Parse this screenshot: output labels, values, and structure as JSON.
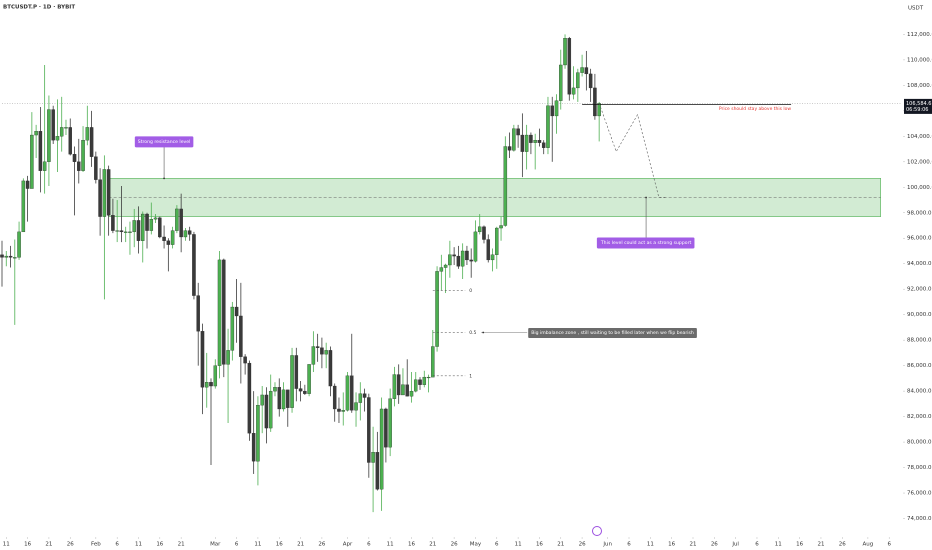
{
  "chart_data": {
    "type": "candlestick",
    "title": "BTCUSDT.P · 1D · BYBIT",
    "currency": "USDT",
    "bull_color": "#4caf50",
    "bear_color": "#3a3a3a",
    "grid": false,
    "xlim": [
      "Jan 10",
      "Aug 9"
    ],
    "ylim": [
      73100,
      114700
    ],
    "yticks": [
      {
        "value": 112000,
        "label": "112,000.0"
      },
      {
        "value": 110000,
        "label": "110,000.0"
      },
      {
        "value": 108000,
        "label": "108,000.0"
      },
      {
        "value": 106000,
        "label": "106,000.0"
      },
      {
        "value": 104000,
        "label": "104,000.0"
      },
      {
        "value": 102000,
        "label": "102,000.0"
      },
      {
        "value": 100000,
        "label": "100,000.0"
      },
      {
        "value": 98000,
        "label": "98,000.0"
      },
      {
        "value": 96000,
        "label": "96,000.0"
      },
      {
        "value": 94000,
        "label": "94,000.0"
      },
      {
        "value": 92000,
        "label": "92,000.0"
      },
      {
        "value": 90000,
        "label": "90,000.0"
      },
      {
        "value": 88000,
        "label": "88,000.0"
      },
      {
        "value": 86000,
        "label": "86,000.0"
      },
      {
        "value": 84000,
        "label": "84,000.0"
      },
      {
        "value": 82000,
        "label": "82,000.0"
      },
      {
        "value": 80000,
        "label": "80,000.0"
      },
      {
        "value": 78000,
        "label": "78,000.0"
      },
      {
        "value": 76000,
        "label": "76,000.0"
      },
      {
        "value": 74000,
        "label": "74,000.0"
      }
    ],
    "xticks": [
      {
        "value": "Jan 11",
        "label": "11"
      },
      {
        "value": "Jan 16",
        "label": "16"
      },
      {
        "value": "Jan 21",
        "label": "21"
      },
      {
        "value": "Jan 26",
        "label": "26"
      },
      {
        "value": "Feb 1",
        "label": "Feb"
      },
      {
        "value": "Feb 6",
        "label": "6"
      },
      {
        "value": "Feb 11",
        "label": "11"
      },
      {
        "value": "Feb 16",
        "label": "16"
      },
      {
        "value": "Feb 21",
        "label": "21"
      },
      {
        "value": "Mar 1",
        "label": "Mar"
      },
      {
        "value": "Mar 6",
        "label": "6"
      },
      {
        "value": "Mar 11",
        "label": "11"
      },
      {
        "value": "Mar 16",
        "label": "16"
      },
      {
        "value": "Mar 21",
        "label": "21"
      },
      {
        "value": "Mar 26",
        "label": "26"
      },
      {
        "value": "Apr 1",
        "label": "Apr"
      },
      {
        "value": "Apr 6",
        "label": "6"
      },
      {
        "value": "Apr 11",
        "label": "11"
      },
      {
        "value": "Apr 16",
        "label": "16"
      },
      {
        "value": "Apr 21",
        "label": "21"
      },
      {
        "value": "Apr 26",
        "label": "26"
      },
      {
        "value": "May 1",
        "label": "May"
      },
      {
        "value": "May 6",
        "label": "6"
      },
      {
        "value": "May 11",
        "label": "11"
      },
      {
        "value": "May 16",
        "label": "16"
      },
      {
        "value": "May 21",
        "label": "21"
      },
      {
        "value": "May 26",
        "label": "26"
      },
      {
        "value": "Jun 1",
        "label": "Jun"
      },
      {
        "value": "Jun 6",
        "label": "6"
      },
      {
        "value": "Jun 11",
        "label": "11"
      },
      {
        "value": "Jun 16",
        "label": "16"
      },
      {
        "value": "Jun 21",
        "label": "21"
      },
      {
        "value": "Jun 26",
        "label": "26"
      },
      {
        "value": "Jul 1",
        "label": "Jul"
      },
      {
        "value": "Jul 6",
        "label": "6"
      },
      {
        "value": "Jul 11",
        "label": "11"
      },
      {
        "value": "Jul 16",
        "label": "16"
      },
      {
        "value": "Jul 21",
        "label": "21"
      },
      {
        "value": "Jul 26",
        "label": "26"
      },
      {
        "value": "Aug 1",
        "label": "Aug"
      },
      {
        "value": "Aug 6",
        "label": "6"
      }
    ],
    "x": [
      "Jan 10",
      "Jan 11",
      "Jan 12",
      "Jan 13",
      "Jan 14",
      "Jan 15",
      "Jan 16",
      "Jan 17",
      "Jan 18",
      "Jan 19",
      "Jan 20",
      "Jan 21",
      "Jan 22",
      "Jan 23",
      "Jan 24",
      "Jan 25",
      "Jan 26",
      "Jan 27",
      "Jan 28",
      "Jan 29",
      "Jan 30",
      "Jan 31",
      "Feb 1",
      "Feb 2",
      "Feb 3",
      "Feb 4",
      "Feb 5",
      "Feb 6",
      "Feb 7",
      "Feb 8",
      "Feb 9",
      "Feb 10",
      "Feb 11",
      "Feb 12",
      "Feb 13",
      "Feb 14",
      "Feb 15",
      "Feb 16",
      "Feb 17",
      "Feb 18",
      "Feb 19",
      "Feb 20",
      "Feb 21",
      "Feb 22",
      "Feb 23",
      "Feb 24",
      "Feb 25",
      "Feb 26",
      "Feb 27",
      "Feb 28",
      "Mar 1",
      "Mar 2",
      "Mar 3",
      "Mar 4",
      "Mar 5",
      "Mar 6",
      "Mar 7",
      "Mar 8",
      "Mar 9",
      "Mar 10",
      "Mar 11",
      "Mar 12",
      "Mar 13",
      "Mar 14",
      "Mar 15",
      "Mar 16",
      "Mar 17",
      "Mar 18",
      "Mar 19",
      "Mar 20",
      "Mar 21",
      "Mar 22",
      "Mar 23",
      "Mar 24",
      "Mar 25",
      "Mar 26",
      "Mar 27",
      "Mar 28",
      "Mar 29",
      "Mar 30",
      "Mar 31",
      "Apr 1",
      "Apr 2",
      "Apr 3",
      "Apr 4",
      "Apr 5",
      "Apr 6",
      "Apr 7",
      "Apr 8",
      "Apr 9",
      "Apr 10",
      "Apr 11",
      "Apr 12",
      "Apr 13",
      "Apr 14",
      "Apr 15",
      "Apr 16",
      "Apr 17",
      "Apr 18",
      "Apr 19",
      "Apr 20",
      "Apr 21",
      "Apr 22",
      "Apr 23",
      "Apr 24",
      "Apr 25",
      "Apr 26",
      "Apr 27",
      "Apr 28",
      "Apr 29",
      "Apr 30",
      "May 1",
      "May 2",
      "May 3",
      "May 4",
      "May 5",
      "May 6",
      "May 7",
      "May 8",
      "May 9",
      "May 10",
      "May 11",
      "May 12",
      "May 13",
      "May 14",
      "May 15",
      "May 16",
      "May 17",
      "May 18",
      "May 19",
      "May 20",
      "May 21",
      "May 22",
      "May 23",
      "May 24",
      "May 25",
      "May 26",
      "May 27",
      "May 28",
      "May 29",
      "May 30"
    ],
    "open": [
      94700,
      94500,
      94600,
      94500,
      94500,
      96500,
      100500,
      99900,
      104100,
      104400,
      101300,
      102000,
      106100,
      103700,
      104000,
      104700,
      104700,
      102600,
      102000,
      101300,
      103700,
      104700,
      102400,
      100600,
      97700,
      101400,
      97800,
      96600,
      96600,
      96500,
      96500,
      96500,
      97400,
      95800,
      97900,
      96600,
      97500,
      97600,
      96100,
      95800,
      95500,
      96600,
      98300,
      96100,
      96600,
      96300,
      91500,
      88700,
      84300,
      84700,
      84400,
      86000,
      94300,
      86100,
      87200,
      90600,
      89900,
      86700,
      86200,
      80700,
      78500,
      82900,
      83700,
      81100,
      84000,
      84300,
      82600,
      84100,
      82700,
      86800,
      84200,
      84000,
      83800,
      86100,
      87500,
      87400,
      86900,
      87200,
      84400,
      82600,
      82400,
      82500,
      85200,
      82500,
      83100,
      83800,
      83500,
      78400,
      79200,
      76300,
      82600,
      79600,
      83400,
      85300,
      83700,
      84500,
      83600,
      84000,
      84900,
      84500,
      85100,
      85100,
      87500,
      93400,
      93700,
      93900,
      94700,
      94600,
      93800,
      95000,
      94300,
      94200,
      96500,
      96900,
      95900,
      94300,
      94700,
      96800,
      97000,
      103200,
      102900,
      104600,
      104100,
      102800,
      104100,
      103500,
      103700,
      103500,
      103100,
      106400,
      105600,
      106800,
      109600,
      111700,
      107300,
      107800,
      109000,
      109400,
      108900,
      107800,
      105600
    ],
    "high": [
      95800,
      95000,
      95400,
      95900,
      97300,
      100700,
      100900,
      105900,
      104900,
      106300,
      109600,
      107200,
      106400,
      106900,
      107100,
      105300,
      105400,
      103200,
      103800,
      104800,
      106400,
      106000,
      102800,
      101500,
      102500,
      101700,
      99100,
      99000,
      100100,
      96900,
      97300,
      98300,
      98500,
      98100,
      98000,
      98800,
      97900,
      97700,
      97000,
      96000,
      96900,
      98600,
      99500,
      96800,
      96900,
      96500,
      92500,
      89300,
      87000,
      85000,
      86500,
      95000,
      94400,
      88900,
      91000,
      92800,
      92500,
      86900,
      86400,
      84000,
      83600,
      84400,
      84300,
      85300,
      84700,
      85000,
      84700,
      84100,
      87400,
      87400,
      84800,
      84500,
      86100,
      88700,
      88500,
      88200,
      87800,
      87500,
      84600,
      83500,
      83900,
      85500,
      88500,
      83900,
      84700,
      84200,
      83800,
      81200,
      80800,
      83500,
      82700,
      84200,
      85900,
      86100,
      85800,
      86500,
      85500,
      85500,
      85100,
      85600,
      85300,
      88800,
      93800,
      94700,
      94000,
      95800,
      95300,
      95400,
      95600,
      95400,
      95200,
      97400,
      97900,
      97000,
      96300,
      95200,
      96900,
      97700,
      104000,
      104300,
      104900,
      104900,
      105800,
      104900,
      104300,
      104200,
      104600,
      103700,
      107100,
      107100,
      107300,
      110800,
      112000,
      111800,
      109500,
      109300,
      110400,
      110700,
      109300,
      108900,
      106700
    ],
    "low": [
      92200,
      93800,
      93700,
      89200,
      94300,
      96500,
      97300,
      99900,
      102300,
      99600,
      99500,
      100100,
      103400,
      101200,
      102800,
      104100,
      102500,
      97800,
      100300,
      101200,
      103300,
      101600,
      100300,
      96200,
      91200,
      96200,
      96400,
      95700,
      95700,
      95700,
      94700,
      95300,
      94800,
      94100,
      95200,
      96300,
      97200,
      96000,
      95200,
      93400,
      95200,
      96400,
      94900,
      95800,
      95800,
      91200,
      86000,
      82200,
      82700,
      78200,
      84200,
      85000,
      85100,
      81500,
      86400,
      87800,
      84600,
      85300,
      80100,
      77500,
      76600,
      80700,
      79900,
      80800,
      83600,
      82000,
      82400,
      81200,
      82300,
      83200,
      83200,
      83700,
      83600,
      85500,
      86300,
      85800,
      85800,
      83600,
      81600,
      81500,
      81300,
      82400,
      82300,
      81200,
      81700,
      82400,
      77200,
      74500,
      76200,
      74600,
      78400,
      78900,
      82800,
      83000,
      83700,
      83600,
      83100,
      83900,
      84100,
      84300,
      83900,
      85100,
      87100,
      91900,
      91700,
      92900,
      93900,
      93600,
      92800,
      93900,
      92900,
      94100,
      96300,
      95600,
      94100,
      93400,
      93600,
      95800,
      96900,
      102300,
      102800,
      103100,
      100800,
      101400,
      102600,
      101400,
      103200,
      102600,
      102600,
      102000,
      104200,
      106100,
      109300,
      106800,
      106900,
      106700,
      108700,
      107600,
      106700,
      105300,
      103600
    ],
    "close": [
      94500,
      94600,
      94500,
      94500,
      96500,
      100500,
      99900,
      104100,
      104400,
      101300,
      102000,
      106100,
      103700,
      104000,
      104700,
      104700,
      102600,
      102000,
      101300,
      103700,
      104700,
      102400,
      100600,
      97700,
      101400,
      97800,
      96600,
      96600,
      96500,
      96500,
      96500,
      97400,
      95800,
      97900,
      96600,
      97500,
      97600,
      96100,
      95800,
      95500,
      96600,
      98300,
      96100,
      96600,
      96300,
      91500,
      88700,
      84300,
      84700,
      84400,
      86000,
      94300,
      86100,
      87200,
      90600,
      89900,
      86700,
      86200,
      80700,
      78500,
      82900,
      83700,
      81100,
      84000,
      84300,
      82600,
      84100,
      82700,
      86800,
      84200,
      84000,
      83800,
      86100,
      87500,
      87400,
      86900,
      87200,
      84400,
      82600,
      82400,
      82500,
      85200,
      82500,
      83100,
      83800,
      83500,
      78400,
      79200,
      76300,
      82600,
      79600,
      83400,
      85300,
      83700,
      84500,
      83600,
      84000,
      84900,
      84500,
      85100,
      85100,
      87500,
      93400,
      93700,
      93900,
      94700,
      94600,
      93800,
      95000,
      94300,
      94200,
      96500,
      96900,
      95900,
      94300,
      94700,
      96800,
      97000,
      103200,
      102900,
      104600,
      104100,
      102800,
      104100,
      103500,
      103700,
      103500,
      103100,
      106400,
      105600,
      106800,
      109600,
      111700,
      107300,
      107800,
      109000,
      109400,
      108900,
      107800,
      105600,
      106584.6
    ],
    "last_price": {
      "value": 106584.6,
      "label": "106,584.6"
    },
    "countdown": "06:59:06",
    "zone": {
      "x": [
        "Feb 4",
        "Aug 4"
      ],
      "y": [
        97700,
        100700
      ],
      "mid": 99200,
      "color": "#4caf50"
    },
    "support_line": {
      "x": [
        "May 26",
        "Jul 14"
      ],
      "y": 106500,
      "note": "Price should stay above this low",
      "color": "#e53935"
    },
    "projection": {
      "x": [
        "May 30",
        "Jun 3",
        "Jun 8",
        "Jun 13",
        "Jun 15"
      ],
      "y": [
        106600,
        102800,
        105700,
        99200,
        99200
      ]
    },
    "fib": {
      "x": [
        "Apr 21",
        "Apr 30"
      ],
      "levels": [
        0,
        0.5,
        1
      ],
      "prices": [
        91900,
        88600,
        85200
      ]
    },
    "imbalance_note": "Big imbalance zone , still waiting to be filled later when we flip bearish",
    "annotations": [
      {
        "text": "Strong resistance level",
        "x": "Feb 17",
        "y": 100700,
        "position": "above",
        "color": "#a25de6"
      },
      {
        "text": "This level could act as a strong support",
        "x": "Jun 10",
        "y": 99200,
        "position": "below",
        "color": "#a25de6"
      }
    ]
  }
}
